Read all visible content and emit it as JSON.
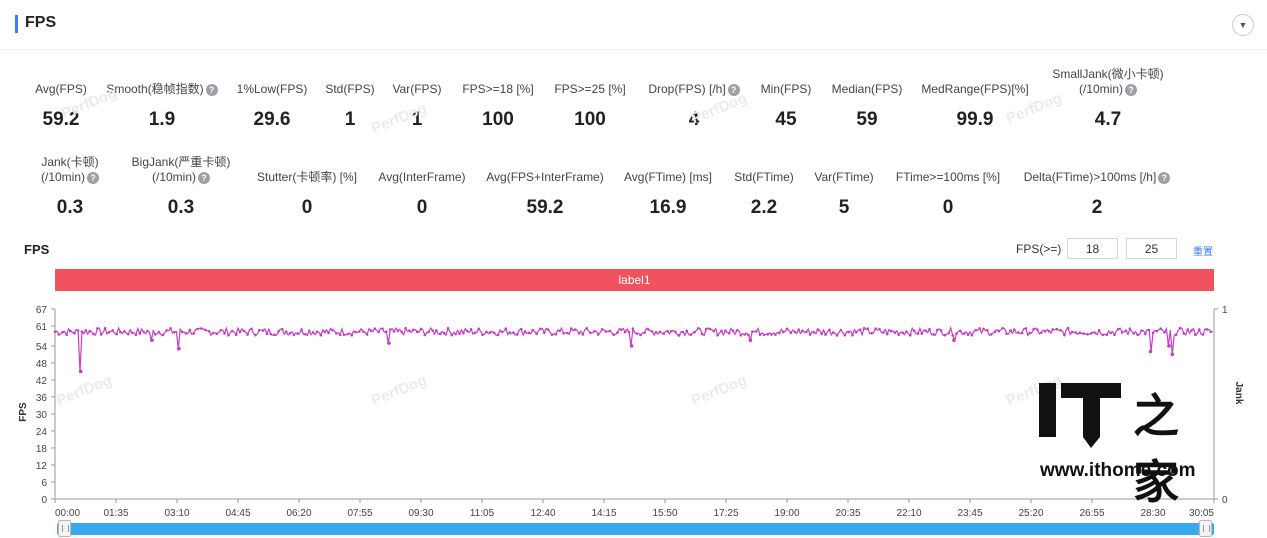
{
  "header": {
    "title": "FPS",
    "collapse_icon": "▼"
  },
  "metrics_row1": [
    {
      "label": "Avg(FPS)",
      "value": "59.2"
    },
    {
      "label": "Smooth(稳帧指数)",
      "value": "1.9",
      "help": true
    },
    {
      "label": "1%Low(FPS)",
      "value": "29.6"
    },
    {
      "label": "Std(FPS)",
      "value": "1"
    },
    {
      "label": "Var(FPS)",
      "value": "1"
    },
    {
      "label": "FPS>=18 [%]",
      "value": "100"
    },
    {
      "label": "FPS>=25 [%]",
      "value": "100"
    },
    {
      "label": "Drop(FPS) [/h]",
      "value": "4",
      "help": true
    },
    {
      "label": "Min(FPS)",
      "value": "45"
    },
    {
      "label": "Median(FPS)",
      "value": "59"
    },
    {
      "label": "MedRange(FPS)[%]",
      "value": "99.9"
    },
    {
      "label": "SmallJank(微小卡顿)",
      "label2": "(/10min)",
      "value": "4.7",
      "help": true
    }
  ],
  "metrics_row2": [
    {
      "label": "Jank(卡顿)",
      "label2": "(/10min)",
      "value": "0.3",
      "help": true
    },
    {
      "label": "BigJank(严重卡顿)",
      "label2": "(/10min)",
      "value": "0.3",
      "help": true
    },
    {
      "label": "Stutter(卡顿率) [%]",
      "value": "0"
    },
    {
      "label": "Avg(InterFrame)",
      "value": "0"
    },
    {
      "label": "Avg(FPS+InterFrame)",
      "value": "59.2"
    },
    {
      "label": "Avg(FTime) [ms]",
      "value": "16.9"
    },
    {
      "label": "Std(FTime)",
      "value": "2.2"
    },
    {
      "label": "Var(FTime)",
      "value": "5"
    },
    {
      "label": "FTime>=100ms [%]",
      "value": "0"
    },
    {
      "label": "Delta(FTime)>100ms [/h]",
      "value": "2",
      "help": true
    }
  ],
  "chart_section": {
    "title": "FPS",
    "fps_ge_label": "FPS(>=)",
    "threshold1": "18",
    "threshold2": "25",
    "apply_label": "重置",
    "label_bar": "label1",
    "watermark": "PerfDog"
  },
  "chart_data": {
    "type": "line",
    "ylabel": "FPS",
    "y2label": "Jank",
    "ylim": [
      0,
      67
    ],
    "y_ticks": [
      "0",
      "6",
      "12",
      "18",
      "24",
      "30",
      "36",
      "42",
      "48",
      "54",
      "61",
      "67"
    ],
    "y2_ticks": [
      "0",
      "1"
    ],
    "x_ticks": [
      "00:00",
      "01:35",
      "03:10",
      "04:45",
      "06:20",
      "07:55",
      "09:30",
      "11:05",
      "12:40",
      "14:15",
      "15:50",
      "17:25",
      "19:00",
      "20:35",
      "22:10",
      "23:45",
      "25:20",
      "26:55",
      "28:30",
      "30:05"
    ],
    "xlim_seconds": [
      0,
      1805
    ],
    "baseline_fps": 59,
    "series_color": "#c23fc4",
    "dips": [
      {
        "t": 40,
        "fps": 45
      },
      {
        "t": 193,
        "fps": 53
      },
      {
        "t": 151,
        "fps": 56
      },
      {
        "t": 520,
        "fps": 55
      },
      {
        "t": 898,
        "fps": 54
      },
      {
        "t": 1083,
        "fps": 56
      },
      {
        "t": 1400,
        "fps": 56
      },
      {
        "t": 1706,
        "fps": 52
      },
      {
        "t": 1740,
        "fps": 51
      },
      {
        "t": 1735,
        "fps": 54
      }
    ]
  },
  "logo": {
    "it": "IT",
    "chars": "之家",
    "url": "www.ithome.com"
  }
}
